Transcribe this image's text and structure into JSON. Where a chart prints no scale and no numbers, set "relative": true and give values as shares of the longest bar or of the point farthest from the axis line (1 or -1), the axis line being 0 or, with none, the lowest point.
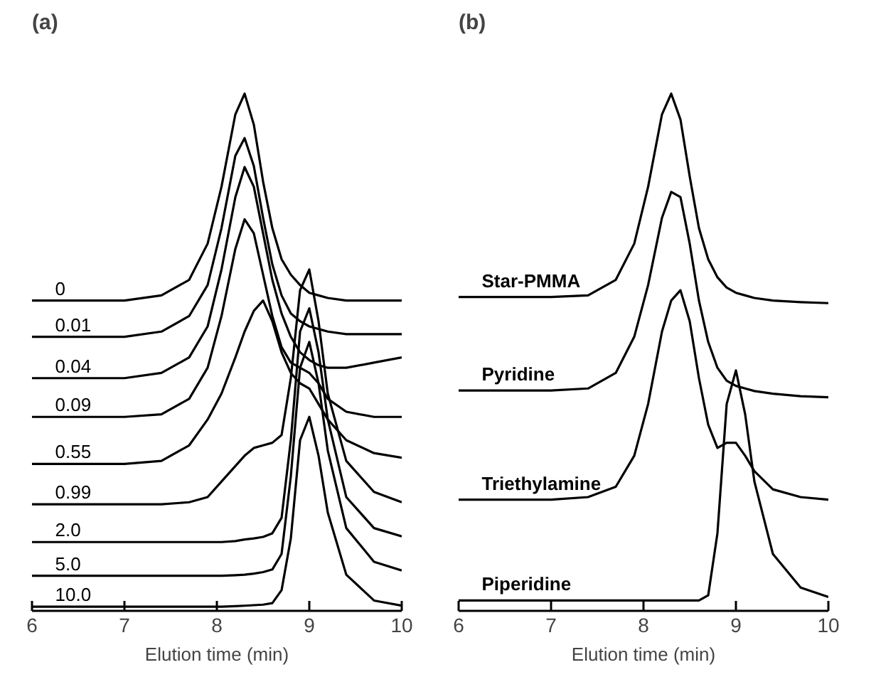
{
  "chart_data": [
    {
      "type": "line",
      "title": "(a)",
      "xlabel": "Elution time (min)",
      "relative": true,
      "xlim": [
        6,
        10
      ],
      "xticks": [
        6,
        7,
        8,
        9,
        10
      ],
      "grid": false,
      "x": [
        6,
        7,
        7.4,
        7.7,
        7.9,
        8.05,
        8.2,
        8.3,
        8.4,
        8.5,
        8.6,
        8.7,
        8.8,
        8.9,
        9.0,
        9.1,
        9.2,
        9.4,
        9.7,
        10
      ],
      "series": [
        {
          "name": "0",
          "color": "#000000",
          "values": [
            0.6,
            0.6,
            0.61,
            0.64,
            0.71,
            0.82,
            0.96,
            1.0,
            0.94,
            0.83,
            0.74,
            0.68,
            0.65,
            0.63,
            0.615,
            0.61,
            0.605,
            0.6,
            0.6,
            0.6
          ]
        },
        {
          "name": "0.01",
          "color": "#000000",
          "values": [
            0.53,
            0.53,
            0.54,
            0.57,
            0.63,
            0.74,
            0.88,
            0.914,
            0.86,
            0.76,
            0.67,
            0.61,
            0.575,
            0.56,
            0.55,
            0.545,
            0.54,
            0.535,
            0.535,
            0.535
          ]
        },
        {
          "name": "0.04",
          "color": "#000000",
          "values": [
            0.45,
            0.45,
            0.46,
            0.49,
            0.55,
            0.66,
            0.8,
            0.858,
            0.82,
            0.73,
            0.64,
            0.575,
            0.53,
            0.5,
            0.485,
            0.475,
            0.47,
            0.47,
            0.48,
            0.49
          ]
        },
        {
          "name": "0.09",
          "color": "#000000",
          "values": [
            0.375,
            0.375,
            0.38,
            0.41,
            0.47,
            0.57,
            0.7,
            0.757,
            0.73,
            0.65,
            0.57,
            0.51,
            0.48,
            0.47,
            0.46,
            0.44,
            0.41,
            0.385,
            0.375,
            0.375
          ]
        },
        {
          "name": "0.55",
          "color": "#000000",
          "values": [
            0.284,
            0.284,
            0.29,
            0.32,
            0.37,
            0.42,
            0.49,
            0.54,
            0.58,
            0.6,
            0.56,
            0.5,
            0.46,
            0.44,
            0.43,
            0.4,
            0.37,
            0.33,
            0.305,
            0.296
          ]
        },
        {
          "name": "0.99",
          "color": "#000000",
          "values": [
            0.206,
            0.206,
            0.206,
            0.21,
            0.22,
            0.25,
            0.28,
            0.3,
            0.315,
            0.32,
            0.325,
            0.34,
            0.45,
            0.62,
            0.66,
            0.56,
            0.42,
            0.29,
            0.23,
            0.21
          ]
        },
        {
          "name": "2.0",
          "color": "#000000",
          "values": [
            0.133,
            0.133,
            0.133,
            0.133,
            0.133,
            0.133,
            0.135,
            0.138,
            0.14,
            0.143,
            0.15,
            0.18,
            0.33,
            0.54,
            0.585,
            0.5,
            0.37,
            0.22,
            0.16,
            0.144
          ]
        },
        {
          "name": "5.0",
          "color": "#000000",
          "values": [
            0.068,
            0.068,
            0.068,
            0.068,
            0.068,
            0.068,
            0.069,
            0.07,
            0.072,
            0.075,
            0.08,
            0.11,
            0.26,
            0.47,
            0.52,
            0.44,
            0.31,
            0.16,
            0.095,
            0.078
          ]
        },
        {
          "name": "10.0",
          "color": "#000000",
          "values": [
            0.008,
            0.008,
            0.008,
            0.008,
            0.008,
            0.008,
            0.009,
            0.01,
            0.011,
            0.012,
            0.015,
            0.04,
            0.14,
            0.33,
            0.375,
            0.3,
            0.19,
            0.07,
            0.02,
            0.01
          ]
        }
      ]
    },
    {
      "type": "line",
      "title": "(b)",
      "xlabel": "Elution time (min)",
      "relative": true,
      "xlim": [
        6,
        10
      ],
      "xticks": [
        6,
        7,
        8,
        9,
        10
      ],
      "grid": false,
      "x": [
        6,
        7,
        7.4,
        7.7,
        7.9,
        8.05,
        8.2,
        8.3,
        8.4,
        8.5,
        8.6,
        8.7,
        8.8,
        8.9,
        9.0,
        9.1,
        9.2,
        9.4,
        9.7,
        10
      ],
      "series": [
        {
          "name": "Star-PMMA",
          "color": "#000000",
          "values": [
            0.607,
            0.607,
            0.61,
            0.64,
            0.71,
            0.82,
            0.96,
            1.0,
            0.95,
            0.84,
            0.74,
            0.68,
            0.645,
            0.625,
            0.615,
            0.61,
            0.605,
            0.6,
            0.597,
            0.595
          ]
        },
        {
          "name": "Pyridine",
          "color": "#000000",
          "values": [
            0.426,
            0.426,
            0.43,
            0.46,
            0.53,
            0.63,
            0.76,
            0.81,
            0.8,
            0.71,
            0.6,
            0.52,
            0.47,
            0.445,
            0.435,
            0.43,
            0.425,
            0.42,
            0.415,
            0.413
          ]
        },
        {
          "name": "Triethylamine",
          "color": "#000000",
          "values": [
            0.215,
            0.215,
            0.22,
            0.24,
            0.3,
            0.4,
            0.54,
            0.6,
            0.62,
            0.56,
            0.45,
            0.36,
            0.315,
            0.325,
            0.325,
            0.3,
            0.27,
            0.235,
            0.22,
            0.215
          ]
        },
        {
          "name": "Piperidine",
          "color": "#000000",
          "values": [
            0.02,
            0.02,
            0.02,
            0.02,
            0.02,
            0.02,
            0.02,
            0.02,
            0.02,
            0.02,
            0.02,
            0.03,
            0.15,
            0.4,
            0.465,
            0.38,
            0.25,
            0.11,
            0.045,
            0.027
          ]
        }
      ]
    }
  ]
}
